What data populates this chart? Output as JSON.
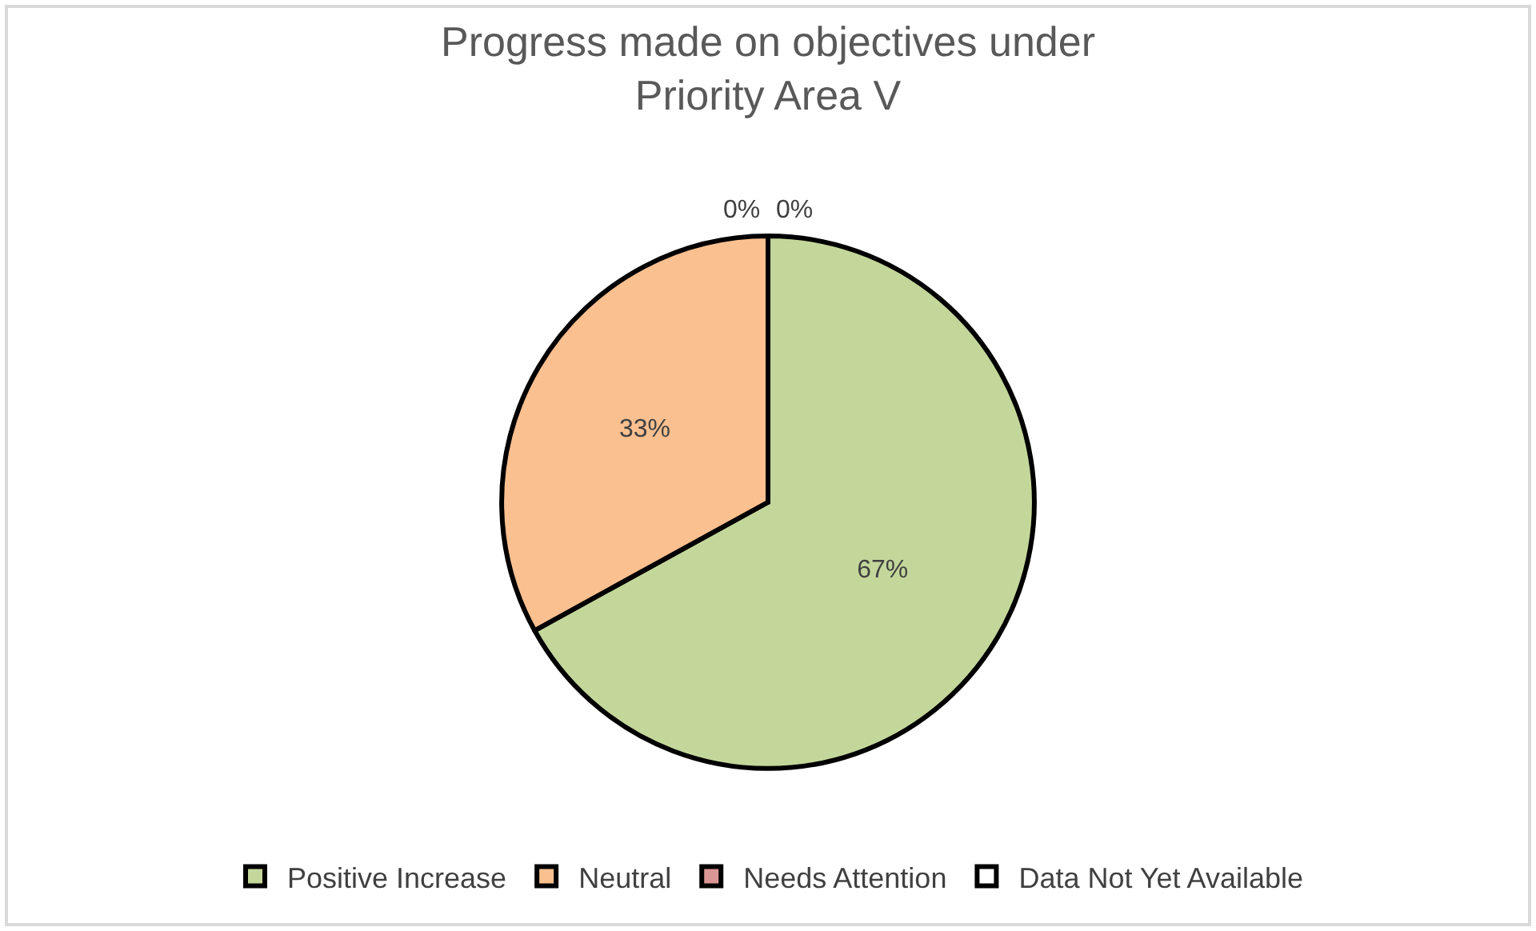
{
  "chart_data": {
    "type": "pie",
    "title": "Progress made on objectives under\nPriority Area V",
    "categories": [
      "Positive Increase",
      "Neutral",
      "Needs Attention",
      "Data Not Yet Available"
    ],
    "values": [
      67,
      33,
      0,
      0
    ],
    "value_labels": [
      "67%",
      "33%",
      "0%",
      "0%"
    ],
    "colors": [
      "#c4d79b",
      "#fac090",
      "#d99694",
      "#ffffff"
    ],
    "legend": "bottom"
  }
}
